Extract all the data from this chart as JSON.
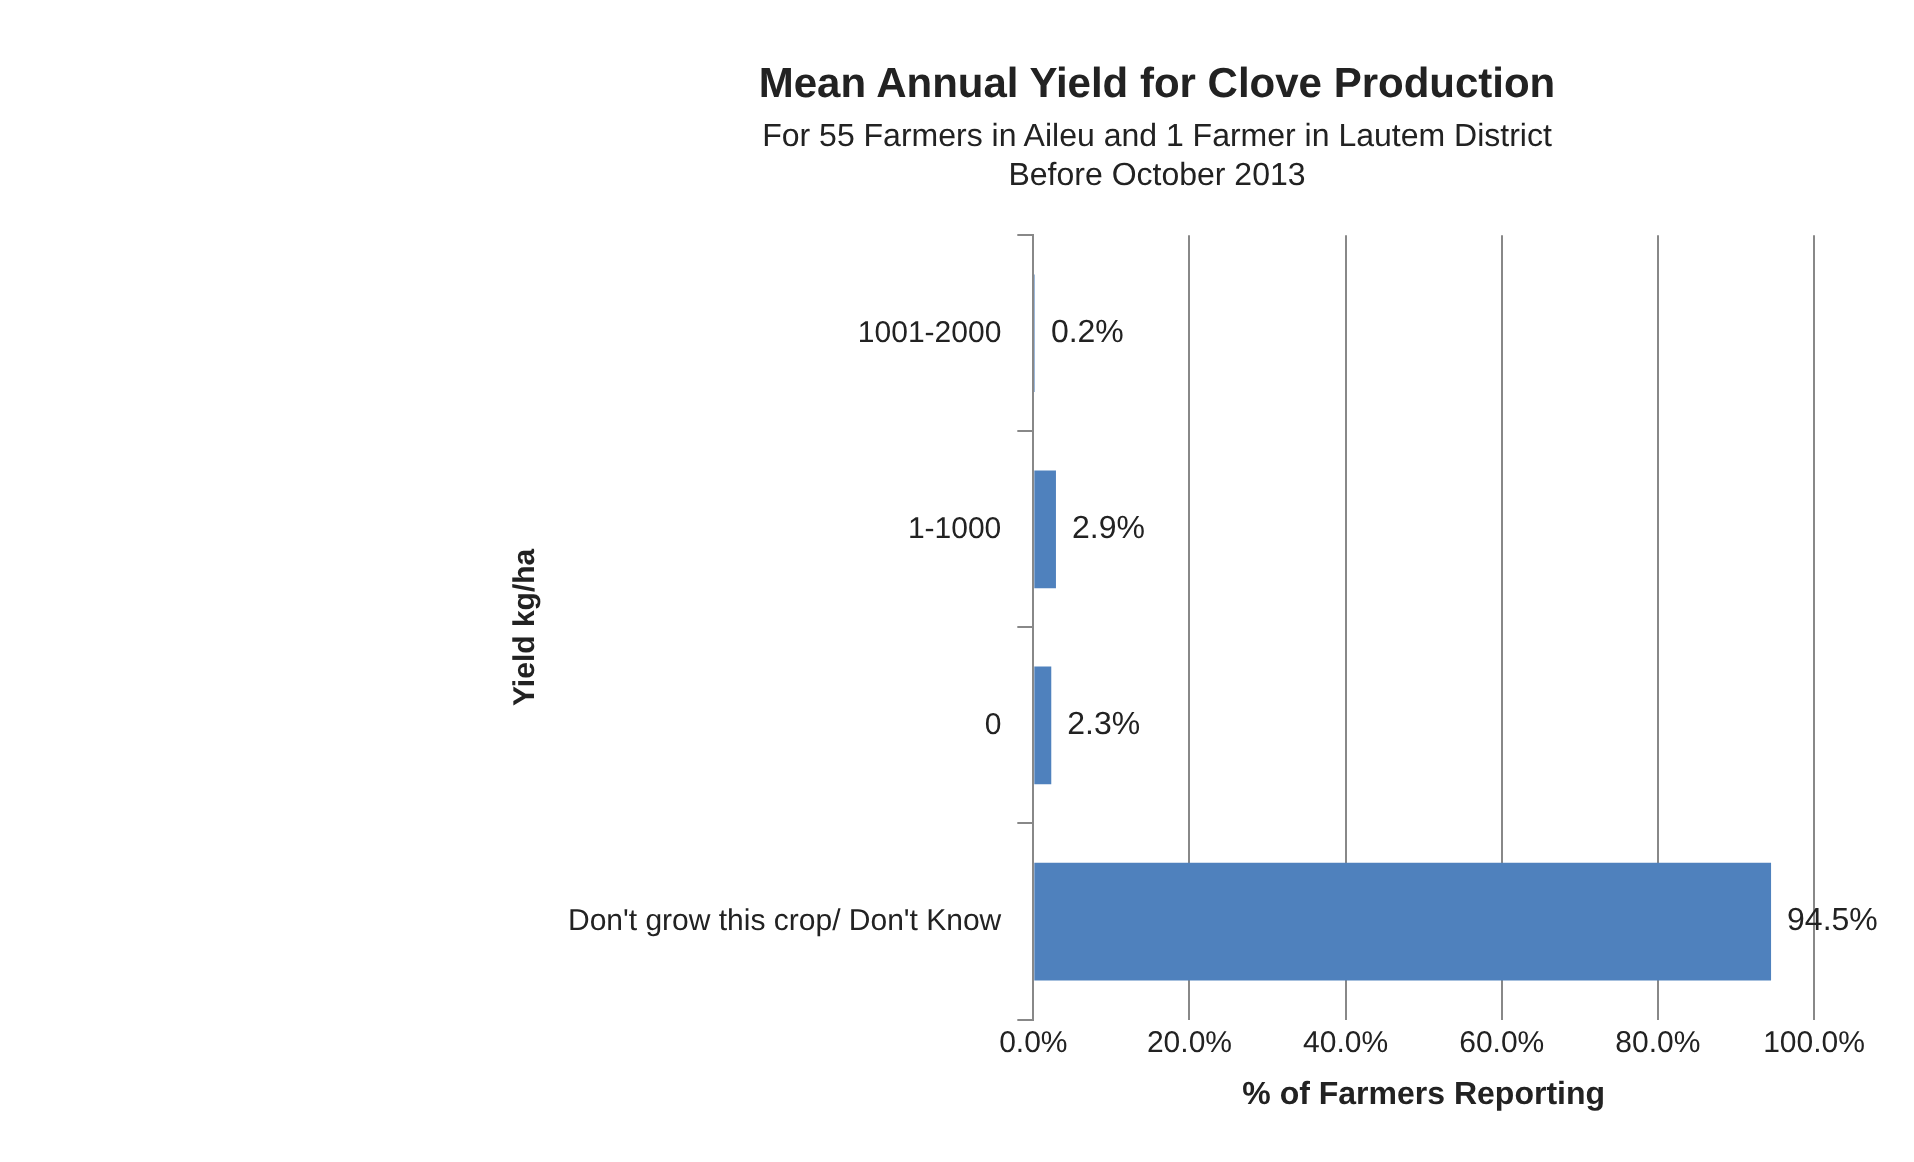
{
  "chart_data": {
    "type": "bar",
    "orientation": "horizontal",
    "title": "Mean Annual Yield for Clove Production",
    "subtitle": "For 55 Farmers in Aileu and 1 Farmer in Lautem District\nBefore October 2013",
    "xlabel": "% of Farmers Reporting",
    "ylabel": "Yield kg/ha",
    "categories": [
      "1001-2000",
      "1-1000",
      "0",
      "Don't grow this crop/ Don't Know"
    ],
    "values": [
      0.2,
      2.9,
      2.3,
      94.5
    ],
    "value_labels": [
      "0.2%",
      "2.9%",
      "2.3%",
      "94.5%"
    ],
    "color": "#4f81bd",
    "xlim": [
      0,
      100
    ],
    "xticks": [
      {
        "value": 0,
        "label": "0.0%"
      },
      {
        "value": 20,
        "label": "20.0%"
      },
      {
        "value": 40,
        "label": "40.0%"
      },
      {
        "value": 60,
        "label": "60.0%"
      },
      {
        "value": 80,
        "label": "80.0%"
      },
      {
        "value": 100,
        "label": "100.0%"
      }
    ],
    "grid": "x",
    "legend": false
  }
}
